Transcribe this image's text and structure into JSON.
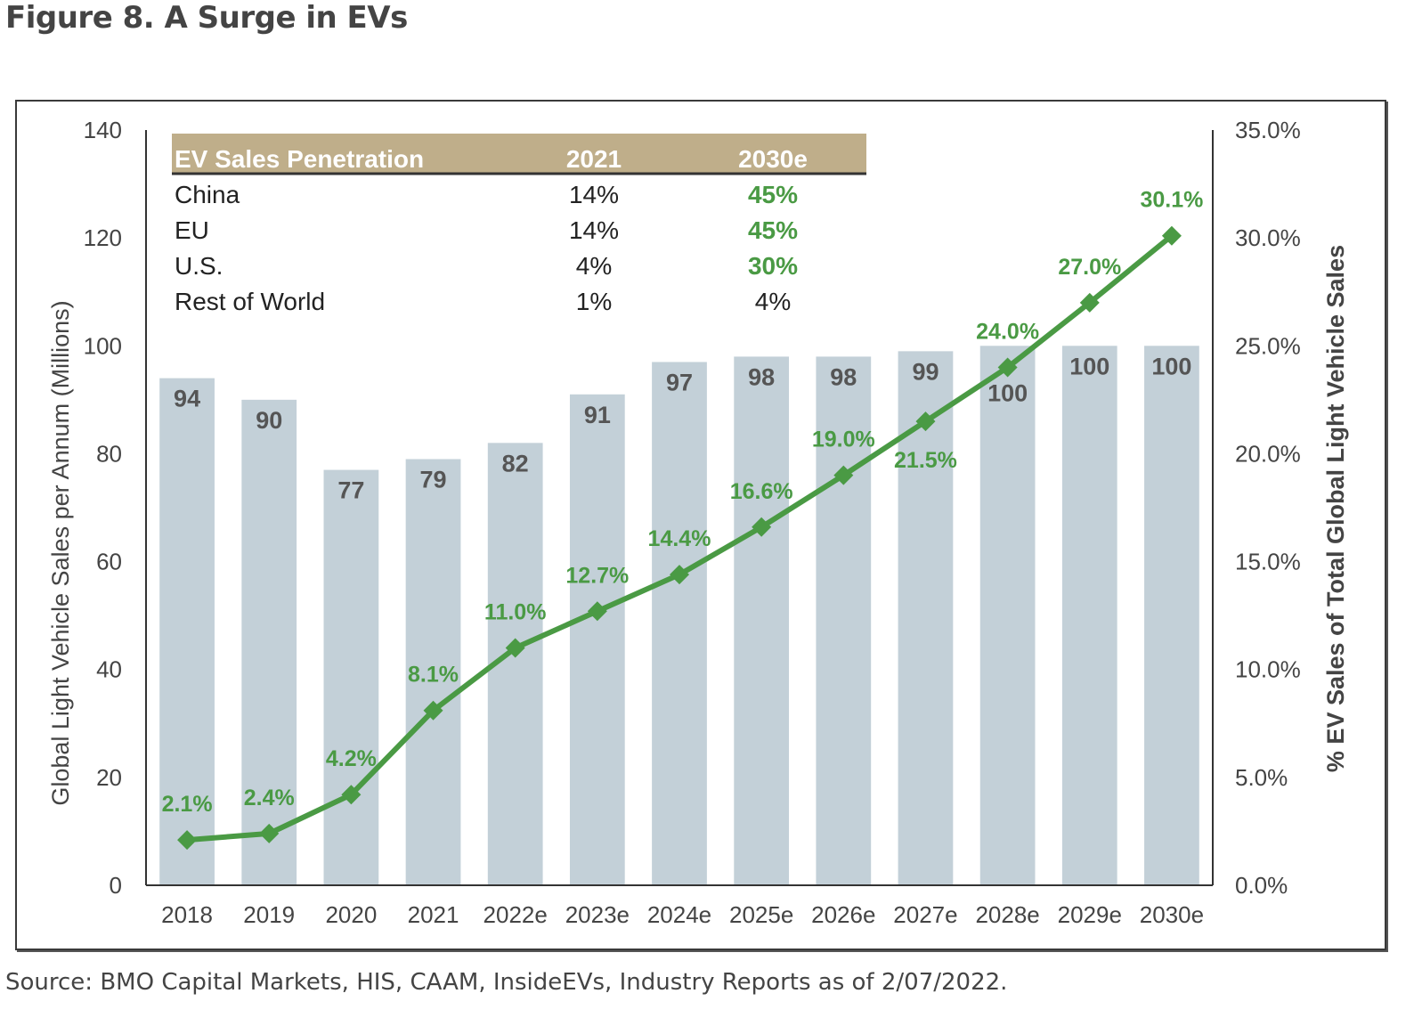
{
  "header": {
    "title": "Figure 8. A Surge in EVs"
  },
  "footer": {
    "source": "Source: BMO Capital Markets, HIS, CAAM, InsideEVs, Industry Reports as of 2/07/2022."
  },
  "colors": {
    "bar": "#c3d0d8",
    "bar_label": "#555555",
    "line": "#4a9a44",
    "line_label": "#4a9a44",
    "table_header_bg": "#bfae8a",
    "table_header_text": "#ffffff",
    "table_green": "#4a9a44",
    "axis": "#333333",
    "tick_text": "#444444"
  },
  "inset_table": {
    "headers": [
      "EV Sales Penetration",
      "2021",
      "2030e"
    ],
    "rows": [
      {
        "region": "China",
        "y2021": "14%",
        "y2030e": "45%",
        "highlight": true
      },
      {
        "region": "EU",
        "y2021": "14%",
        "y2030e": "45%",
        "highlight": true
      },
      {
        "region": "U.S.",
        "y2021": "4%",
        "y2030e": "30%",
        "highlight": true
      },
      {
        "region": "Rest of World",
        "y2021": "1%",
        "y2030e": "4%",
        "highlight": false
      }
    ]
  },
  "chart_data": {
    "type": "bar",
    "title": "Figure 8. A Surge in EVs",
    "categories": [
      "2018",
      "2019",
      "2020",
      "2021",
      "2022e",
      "2023e",
      "2024e",
      "2025e",
      "2026e",
      "2027e",
      "2028e",
      "2029e",
      "2030e"
    ],
    "series": [
      {
        "name": "Global Light Vehicle Sales per Annum (Millions)",
        "type": "bar",
        "axis": "left",
        "values": [
          94,
          90,
          77,
          79,
          82,
          91,
          97,
          98,
          98,
          99,
          100,
          100,
          100
        ],
        "labels": [
          "94",
          "90",
          "77",
          "79",
          "82",
          "91",
          "97",
          "98",
          "98",
          "99",
          "100",
          "100",
          "100"
        ]
      },
      {
        "name": "% EV Sales of Total Global Light Vehicle Sales",
        "type": "line",
        "axis": "right",
        "marker": "diamond",
        "values": [
          2.1,
          2.4,
          4.2,
          8.1,
          11.0,
          12.7,
          14.4,
          16.6,
          19.0,
          21.5,
          24.0,
          27.0,
          30.1
        ],
        "labels": [
          "2.1%",
          "2.4%",
          "4.2%",
          "8.1%",
          "11.0%",
          "12.7%",
          "14.4%",
          "16.6%",
          "19.0%",
          "21.5%",
          "24.0%",
          "27.0%",
          "30.1%"
        ]
      }
    ],
    "xlabel": "",
    "ylabel": "Global Light Vehicle Sales per Annum (Millions)",
    "ylabel_right": "% EV Sales of Total Global Light Vehicle Sales",
    "ylim": [
      0,
      140
    ],
    "ylim_right": [
      0,
      35
    ],
    "yticks": [
      "0",
      "20",
      "40",
      "60",
      "80",
      "100",
      "120",
      "140"
    ],
    "yticks_right": [
      "0.0%",
      "5.0%",
      "10.0%",
      "15.0%",
      "20.0%",
      "25.0%",
      "30.0%",
      "35.0%"
    ],
    "grid": false,
    "legend": "none"
  }
}
